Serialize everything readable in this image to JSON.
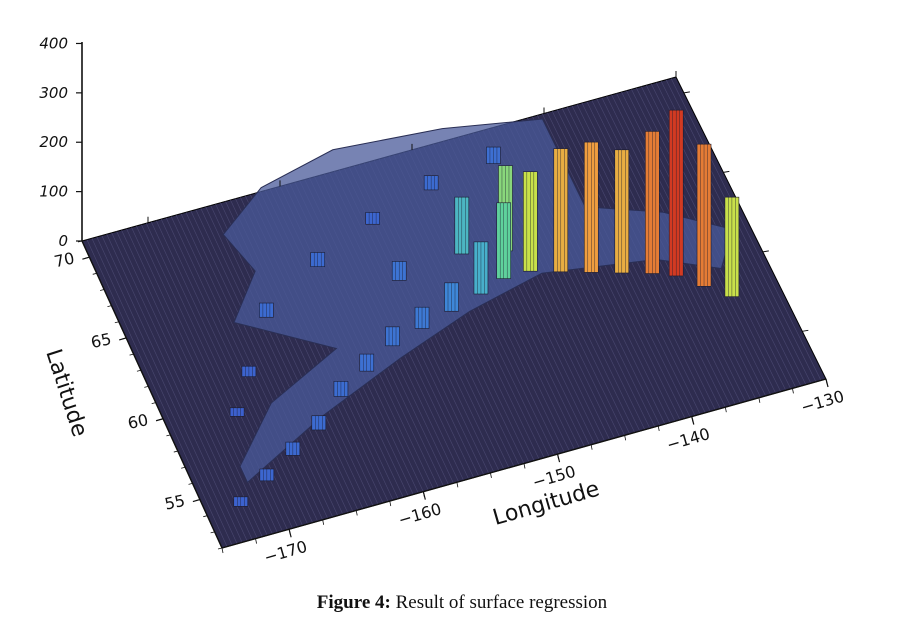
{
  "figure": {
    "caption_label": "Figure 4:",
    "caption_text": "Result of surface regression"
  },
  "chart_data": {
    "type": "3d-surface-bars",
    "zlabel": "",
    "xlabel": "Longitude",
    "ylabel": "Latitude",
    "x_ticks": [
      "−170",
      "−160",
      "−150",
      "−140",
      "−130"
    ],
    "y_ticks": [
      "55",
      "60",
      "65",
      "70"
    ],
    "z_ticks": [
      "0",
      "100",
      "200",
      "300",
      "400"
    ],
    "xlim": [
      -175,
      -130
    ],
    "ylim": [
      52,
      71
    ],
    "zlim": [
      0,
      420
    ],
    "colormap": "jet",
    "background_color": "#2e2c4f",
    "columns": [
      {
        "lon": -172.5,
        "lat": 54.0,
        "value": 20
      },
      {
        "lon": -170.0,
        "lat": 55.0,
        "value": 25
      },
      {
        "lon": -167.5,
        "lat": 56.0,
        "value": 28
      },
      {
        "lon": -165.0,
        "lat": 57.0,
        "value": 30
      },
      {
        "lon": -162.5,
        "lat": 58.5,
        "value": 32
      },
      {
        "lon": -160.0,
        "lat": 59.5,
        "value": 36
      },
      {
        "lon": -157.5,
        "lat": 60.5,
        "value": 40
      },
      {
        "lon": -155.0,
        "lat": 61.0,
        "value": 45
      },
      {
        "lon": -152.5,
        "lat": 61.5,
        "value": 60
      },
      {
        "lon": -150.0,
        "lat": 62.0,
        "value": 110
      },
      {
        "lon": -148.0,
        "lat": 62.5,
        "value": 160
      },
      {
        "lon": -146.0,
        "lat": 62.5,
        "value": 210
      },
      {
        "lon": -144.0,
        "lat": 62.0,
        "value": 260
      },
      {
        "lon": -142.0,
        "lat": 61.5,
        "value": 275
      },
      {
        "lon": -140.0,
        "lat": 61.0,
        "value": 260
      },
      {
        "lon": -138.0,
        "lat": 60.5,
        "value": 300
      },
      {
        "lon": -136.5,
        "lat": 60.0,
        "value": 350
      },
      {
        "lon": -135.0,
        "lat": 59.0,
        "value": 300
      },
      {
        "lon": -133.5,
        "lat": 58.0,
        "value": 210
      },
      {
        "lon": -155.0,
        "lat": 64.0,
        "value": 40
      },
      {
        "lon": -150.0,
        "lat": 64.5,
        "value": 120
      },
      {
        "lon": -147.0,
        "lat": 64.0,
        "value": 180
      },
      {
        "lon": -160.0,
        "lat": 66.0,
        "value": 30
      },
      {
        "lon": -155.0,
        "lat": 67.5,
        "value": 25
      },
      {
        "lon": -150.0,
        "lat": 68.5,
        "value": 30
      },
      {
        "lon": -145.0,
        "lat": 69.0,
        "value": 35
      },
      {
        "lon": -165.0,
        "lat": 64.0,
        "value": 30
      },
      {
        "lon": -168.0,
        "lat": 61.0,
        "value": 22
      },
      {
        "lon": -170.0,
        "lat": 59.0,
        "value": 18
      }
    ]
  }
}
